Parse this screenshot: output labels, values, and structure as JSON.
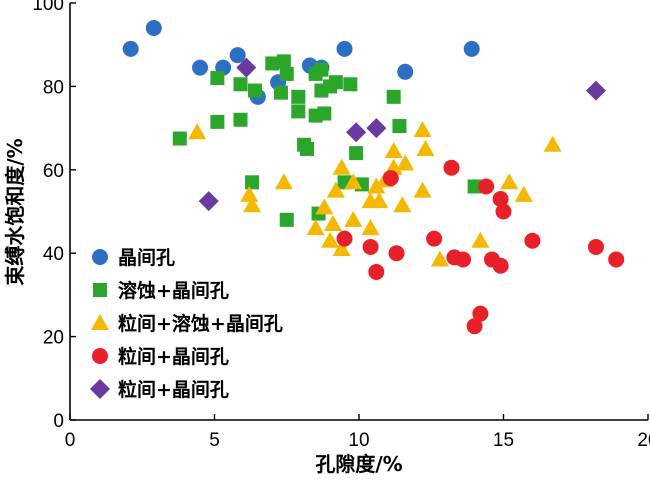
{
  "chart_data": {
    "type": "scatter",
    "xlabel": "孔隙度/%",
    "ylabel": "束缚水饱和度/%",
    "xlim": [
      0,
      20
    ],
    "ylim": [
      0,
      100
    ],
    "xticks": [
      0,
      5,
      10,
      15,
      20
    ],
    "yticks": [
      0,
      20,
      40,
      60,
      80,
      100
    ],
    "legend_position": "bottom-left",
    "series": [
      {
        "name": "晶间孔",
        "marker": "circle",
        "color": "#2E6FC6",
        "points": [
          [
            2.1,
            89
          ],
          [
            2.9,
            94
          ],
          [
            4.5,
            84.5
          ],
          [
            5.3,
            84.5
          ],
          [
            5.8,
            87.5
          ],
          [
            6.5,
            77.5
          ],
          [
            7.2,
            81
          ],
          [
            8.3,
            85
          ],
          [
            8.7,
            84.5
          ],
          [
            9.5,
            89
          ],
          [
            11.6,
            83.5
          ],
          [
            13.9,
            89
          ]
        ]
      },
      {
        "name": "溶蚀+晶间孔",
        "marker": "square",
        "color": "#2AA62A",
        "points": [
          [
            3.8,
            67.5
          ],
          [
            5.1,
            82
          ],
          [
            5.1,
            71.5
          ],
          [
            5.9,
            72
          ],
          [
            5.9,
            80.5
          ],
          [
            6.3,
            57
          ],
          [
            6.4,
            79
          ],
          [
            7.0,
            85.5
          ],
          [
            7.3,
            78.5
          ],
          [
            7.4,
            86
          ],
          [
            7.5,
            48
          ],
          [
            7.5,
            83
          ],
          [
            7.9,
            74
          ],
          [
            7.9,
            77.5
          ],
          [
            8.1,
            66
          ],
          [
            8.2,
            65
          ],
          [
            8.5,
            73
          ],
          [
            8.5,
            83
          ],
          [
            8.6,
            49.5
          ],
          [
            8.7,
            79
          ],
          [
            8.8,
            73.5
          ],
          [
            9.0,
            80
          ],
          [
            9.2,
            81
          ],
          [
            9.5,
            57
          ],
          [
            9.7,
            80.5
          ],
          [
            9.9,
            64
          ],
          [
            10.1,
            56.5
          ],
          [
            11.2,
            77.5
          ],
          [
            11.4,
            70.5
          ],
          [
            14.0,
            56
          ],
          [
            8.7,
            84
          ]
        ]
      },
      {
        "name": "粒间+溶蚀+晶间孔",
        "marker": "triangle",
        "color": "#F5B800",
        "points": [
          [
            4.4,
            69
          ],
          [
            6.2,
            54
          ],
          [
            6.3,
            51.5
          ],
          [
            7.4,
            57
          ],
          [
            8.5,
            46
          ],
          [
            8.8,
            51
          ],
          [
            9.0,
            43
          ],
          [
            9.1,
            47
          ],
          [
            9.2,
            55
          ],
          [
            9.4,
            60.5
          ],
          [
            9.4,
            41
          ],
          [
            9.8,
            48
          ],
          [
            9.8,
            57
          ],
          [
            10.4,
            52.5
          ],
          [
            10.4,
            46
          ],
          [
            10.6,
            56
          ],
          [
            10.7,
            52.5
          ],
          [
            10.9,
            57.5
          ],
          [
            11.2,
            64.5
          ],
          [
            11.2,
            60.5
          ],
          [
            11.5,
            51.5
          ],
          [
            11.6,
            61.5
          ],
          [
            12.2,
            55
          ],
          [
            12.2,
            69.5
          ],
          [
            12.3,
            65
          ],
          [
            12.8,
            38.5
          ],
          [
            14.2,
            43
          ],
          [
            15.2,
            57
          ],
          [
            15.7,
            54
          ],
          [
            16.7,
            66
          ]
        ]
      },
      {
        "name": "粒间+晶间孔",
        "marker": "circle",
        "color": "#E8202A",
        "points": [
          [
            9.5,
            43.5
          ],
          [
            10.4,
            41.5
          ],
          [
            10.6,
            35.5
          ],
          [
            11.1,
            58
          ],
          [
            11.3,
            40
          ],
          [
            12.6,
            43.5
          ],
          [
            13.2,
            60.5
          ],
          [
            13.3,
            39
          ],
          [
            13.6,
            38.5
          ],
          [
            14.0,
            22.5
          ],
          [
            14.2,
            25.5
          ],
          [
            14.4,
            56
          ],
          [
            14.6,
            38.5
          ],
          [
            14.9,
            37
          ],
          [
            14.9,
            53
          ],
          [
            15.0,
            50
          ],
          [
            16.0,
            43
          ],
          [
            18.2,
            41.5
          ],
          [
            18.9,
            38.5
          ]
        ]
      },
      {
        "name": "粒间+晶间孔",
        "marker": "diamond",
        "color": "#6A3A9E",
        "points": [
          [
            4.8,
            52.5
          ],
          [
            6.1,
            84.5
          ],
          [
            9.9,
            69
          ],
          [
            10.6,
            70
          ],
          [
            18.2,
            79
          ]
        ]
      }
    ]
  }
}
